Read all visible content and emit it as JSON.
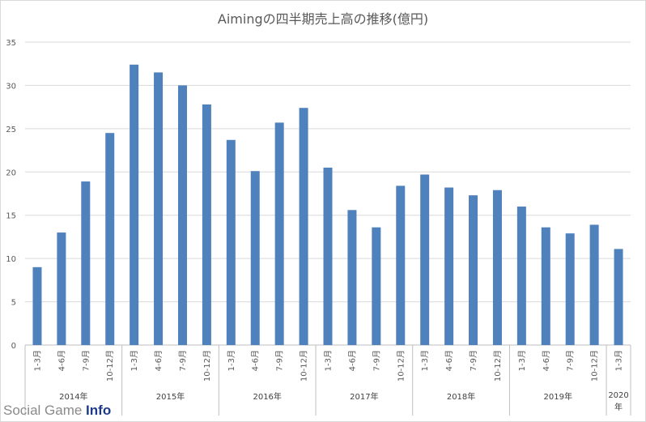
{
  "chart_data": {
    "type": "bar",
    "title": "Aimingの四半期売上高の推移(億円)",
    "xlabel": "",
    "ylabel": "",
    "ylim": [
      0,
      35
    ],
    "yticks": [
      "0",
      "5",
      "10",
      "15",
      "20",
      "25",
      "30",
      "35"
    ],
    "grid": true,
    "legend": "none",
    "bar_color": "#4f81bd",
    "categories": [
      "2014年 1-3月",
      "2014年 4-6月",
      "2014年 7-9月",
      "2014年 10-12月",
      "2015年 1-3月",
      "2015年 4-6月",
      "2015年 7-9月",
      "2015年 10-12月",
      "2016年 1-3月",
      "2016年 4-6月",
      "2016年 7-9月",
      "2016年 10-12月",
      "2017年 1-3月",
      "2017年 4-6月",
      "2017年 7-9月",
      "2017年 10-12月",
      "2018年 1-3月",
      "2018年 4-6月",
      "2018年 7-9月",
      "2018年 10-12月",
      "2019年 1-3月",
      "2019年 4-6月",
      "2019年 7-9月",
      "2019年 10-12月",
      "2020年 1-3月"
    ],
    "quarter_labels": [
      "1-3月",
      "4-6月",
      "7-9月",
      "10-12月",
      "1-3月",
      "4-6月",
      "7-9月",
      "10-12月",
      "1-3月",
      "4-6月",
      "7-9月",
      "10-12月",
      "1-3月",
      "4-6月",
      "7-9月",
      "10-12月",
      "1-3月",
      "4-6月",
      "7-9月",
      "10-12月",
      "1-3月",
      "4-6月",
      "7-9月",
      "10-12月",
      "1-3月"
    ],
    "year_groups": [
      {
        "label": "2014年",
        "quarters": 4
      },
      {
        "label": "2015年",
        "quarters": 4
      },
      {
        "label": "2016年",
        "quarters": 4
      },
      {
        "label": "2017年",
        "quarters": 4
      },
      {
        "label": "2018年",
        "quarters": 4
      },
      {
        "label": "2019年",
        "quarters": 4
      },
      {
        "label": "2020年",
        "quarters": 1
      }
    ],
    "values": [
      9.0,
      13.0,
      18.9,
      24.5,
      32.4,
      31.5,
      30.0,
      27.8,
      23.7,
      20.1,
      25.7,
      27.4,
      20.5,
      15.6,
      13.6,
      18.4,
      19.7,
      18.2,
      17.3,
      17.9,
      16.0,
      13.6,
      12.9,
      13.9,
      11.1
    ]
  },
  "watermark": {
    "part1": "Social Game ",
    "part2": "Info"
  }
}
